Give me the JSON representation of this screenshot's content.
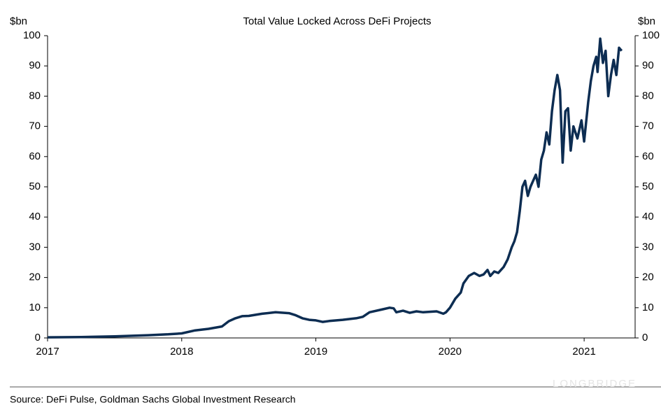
{
  "chart_data": {
    "type": "line",
    "title": "Total Value Locked Across DeFi Projects",
    "y_label": "$bn",
    "y2_label": "$bn",
    "source": "Source: DeFi Pulse, Goldman Sachs Global Investment Research",
    "watermark": "LONGBRIDGE",
    "xlim": [
      2017,
      2021.38
    ],
    "xticks": [
      2017,
      2018,
      2019,
      2020,
      2021
    ],
    "ylim": [
      0,
      100
    ],
    "yticks": [
      0,
      10,
      20,
      30,
      40,
      50,
      60,
      70,
      80,
      90,
      100
    ],
    "y2lim": [
      0,
      100
    ],
    "y2ticks": [
      0,
      10,
      20,
      30,
      40,
      50,
      60,
      70,
      80,
      90,
      100
    ],
    "series": [
      {
        "color": "#0d2d52",
        "x": [
          2017.0,
          2017.25,
          2017.5,
          2017.75,
          2017.9,
          2018.0,
          2018.1,
          2018.2,
          2018.3,
          2018.35,
          2018.4,
          2018.45,
          2018.5,
          2018.6,
          2018.7,
          2018.8,
          2018.85,
          2018.9,
          2018.95,
          2019.0,
          2019.05,
          2019.1,
          2019.2,
          2019.3,
          2019.35,
          2019.4,
          2019.5,
          2019.55,
          2019.58,
          2019.6,
          2019.65,
          2019.7,
          2019.75,
          2019.8,
          2019.9,
          2019.95,
          2019.97,
          2020.0,
          2020.04,
          2020.08,
          2020.1,
          2020.14,
          2020.18,
          2020.22,
          2020.25,
          2020.28,
          2020.3,
          2020.33,
          2020.36,
          2020.4,
          2020.43,
          2020.46,
          2020.48,
          2020.5,
          2020.52,
          2020.54,
          2020.56,
          2020.58,
          2020.6,
          2020.62,
          2020.64,
          2020.66,
          2020.68,
          2020.7,
          2020.72,
          2020.74,
          2020.76,
          2020.78,
          2020.8,
          2020.82,
          2020.84,
          2020.86,
          2020.88,
          2020.9,
          2020.92,
          2020.95,
          2020.98,
          2021.0,
          2021.03,
          2021.05,
          2021.07,
          2021.09,
          2021.1,
          2021.12,
          2021.14,
          2021.16,
          2021.18,
          2021.2,
          2021.22,
          2021.24,
          2021.26,
          2021.28
        ],
        "values": [
          0.2,
          0.3,
          0.5,
          0.9,
          1.2,
          1.5,
          2.5,
          3.0,
          3.8,
          5.5,
          6.5,
          7.2,
          7.3,
          8.0,
          8.5,
          8.2,
          7.5,
          6.5,
          6.0,
          5.8,
          5.3,
          5.6,
          6.0,
          6.5,
          7.0,
          8.5,
          9.5,
          10.0,
          9.8,
          8.5,
          9.0,
          8.3,
          8.8,
          8.5,
          8.8,
          8.0,
          8.5,
          10.0,
          13,
          15,
          18,
          20.5,
          21.5,
          20.5,
          21.0,
          22.5,
          20.5,
          22.0,
          21.5,
          23.5,
          26,
          30,
          32,
          35,
          42,
          50,
          52,
          47,
          50,
          52,
          54,
          50,
          59,
          62,
          68,
          64,
          75,
          82,
          87,
          82,
          58,
          75,
          76,
          62,
          70,
          66,
          72,
          65,
          78,
          85,
          90,
          93,
          88,
          99,
          91,
          95,
          80,
          87,
          92,
          87,
          96,
          95
        ]
      }
    ]
  }
}
